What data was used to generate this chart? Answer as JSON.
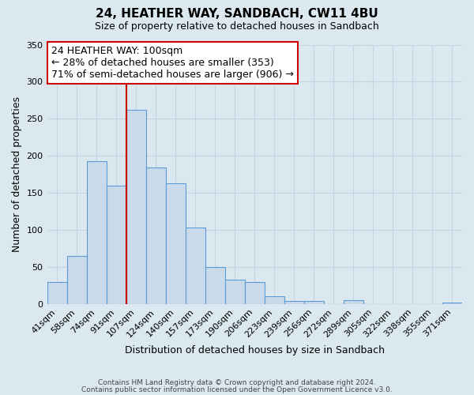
{
  "title1": "24, HEATHER WAY, SANDBACH, CW11 4BU",
  "title2": "Size of property relative to detached houses in Sandbach",
  "xlabel": "Distribution of detached houses by size in Sandbach",
  "ylabel": "Number of detached properties",
  "categories": [
    "41sqm",
    "58sqm",
    "74sqm",
    "91sqm",
    "107sqm",
    "124sqm",
    "140sqm",
    "157sqm",
    "173sqm",
    "190sqm",
    "206sqm",
    "223sqm",
    "239sqm",
    "256sqm",
    "272sqm",
    "289sqm",
    "305sqm",
    "322sqm",
    "338sqm",
    "355sqm",
    "371sqm"
  ],
  "values": [
    30,
    65,
    193,
    160,
    262,
    184,
    163,
    103,
    50,
    33,
    30,
    11,
    4,
    4,
    0,
    5,
    0,
    0,
    0,
    0,
    2
  ],
  "bar_color": "#c9daea",
  "bar_edge_color": "#5b9bd5",
  "grid_color": "#c8d4e0",
  "annotation_box_text_line1": "24 HEATHER WAY: 100sqm",
  "annotation_box_text_line2": "← 28% of detached houses are smaller (353)",
  "annotation_box_text_line3": "71% of semi-detached houses are larger (906) →",
  "annotation_box_color": "white",
  "annotation_box_edge_color": "#cc0000",
  "vertical_line_color": "#cc0000",
  "vline_x_index": 3.5,
  "ylim": [
    0,
    350
  ],
  "yticks": [
    0,
    50,
    100,
    150,
    200,
    250,
    300,
    350
  ],
  "footer1": "Contains HM Land Registry data © Crown copyright and database right 2024.",
  "footer2": "Contains public sector information licensed under the Open Government Licence v3.0.",
  "background_color": "#dce8f0",
  "plot_background_color": "#dce8f0",
  "title1_fontsize": 11,
  "title2_fontsize": 9,
  "ylabel_fontsize": 9,
  "xlabel_fontsize": 9,
  "tick_fontsize": 8,
  "footer_fontsize": 6.5,
  "annotation_fontsize": 9
}
